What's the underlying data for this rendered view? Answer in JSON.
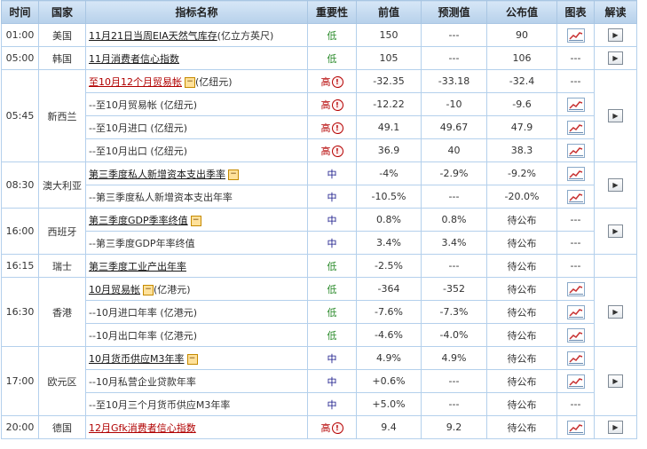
{
  "headers": [
    "时间",
    "国家",
    "指标名称",
    "重要性",
    "前值",
    "预测值",
    "公布值",
    "图表",
    "解读"
  ],
  "rows": [
    {
      "time": "01:00",
      "country": "美国",
      "ind_label": "11月21日当周EIA天然气库存",
      "unit": "(亿立方英尺)",
      "toggle": false,
      "red": false,
      "indicator_link": true,
      "importance": "低",
      "imp": "low",
      "prev": "150",
      "forecast": "---",
      "actual": "90",
      "chart": true,
      "read": true
    },
    {
      "time": "05:00",
      "country": "韩国",
      "ind_label": "11月消费者信心指数",
      "unit": "",
      "toggle": false,
      "red": false,
      "indicator_link": true,
      "importance": "低",
      "imp": "low",
      "prev": "105",
      "forecast": "---",
      "actual": "106",
      "chart": false,
      "read": true
    },
    {
      "time": "05:45",
      "country": "新西兰",
      "ind_label": "至10月12个月贸易帐",
      "unit": "(亿纽元)",
      "toggle": true,
      "red": true,
      "indicator_link": true,
      "importance": "高",
      "imp": "high",
      "prev": "-32.35",
      "forecast": "-33.18",
      "actual": "-32.4",
      "chart": false,
      "read": true
    },
    {
      "time": "",
      "country": "",
      "ind_label": "--至10月贸易帐 (亿纽元)",
      "unit": "",
      "toggle": false,
      "red": false,
      "indicator_link": false,
      "importance": "高",
      "imp": "high",
      "prev": "-12.22",
      "forecast": "-10",
      "actual": "-9.6",
      "chart": true,
      "read": false
    },
    {
      "time": "",
      "country": "",
      "ind_label": "--至10月进口 (亿纽元)",
      "unit": "",
      "toggle": false,
      "red": false,
      "indicator_link": false,
      "importance": "高",
      "imp": "high",
      "prev": "49.1",
      "forecast": "49.67",
      "actual": "47.9",
      "chart": true,
      "read": false
    },
    {
      "time": "",
      "country": "",
      "ind_label": "--至10月出口 (亿纽元)",
      "unit": "",
      "toggle": false,
      "red": false,
      "indicator_link": false,
      "importance": "高",
      "imp": "high",
      "prev": "36.9",
      "forecast": "40",
      "actual": "38.3",
      "chart": true,
      "read": false
    },
    {
      "time": "08:30",
      "country": "澳大利亚",
      "ind_label": "第三季度私人新增资本支出季率",
      "unit": "",
      "toggle": true,
      "red": false,
      "indicator_link": true,
      "importance": "中",
      "imp": "mid",
      "prev": "-4%",
      "forecast": "-2.9%",
      "actual": "-9.2%",
      "chart": true,
      "read": true
    },
    {
      "time": "",
      "country": "",
      "ind_label": "--第三季度私人新增资本支出年率",
      "unit": "",
      "toggle": false,
      "red": false,
      "indicator_link": false,
      "importance": "中",
      "imp": "mid",
      "prev": "-10.5%",
      "forecast": "---",
      "actual": "-20.0%",
      "chart": true,
      "read": false
    },
    {
      "time": "16:00",
      "country": "西班牙",
      "ind_label": "第三季度GDP季率终值",
      "unit": "",
      "toggle": true,
      "red": false,
      "indicator_link": true,
      "importance": "中",
      "imp": "mid",
      "prev": "0.8%",
      "forecast": "0.8%",
      "actual": "待公布",
      "chart": false,
      "read": true
    },
    {
      "time": "",
      "country": "",
      "ind_label": "--第三季度GDP年率终值",
      "unit": "",
      "toggle": false,
      "red": false,
      "indicator_link": false,
      "importance": "中",
      "imp": "mid",
      "prev": "3.4%",
      "forecast": "3.4%",
      "actual": "待公布",
      "chart": false,
      "read": false
    },
    {
      "time": "16:15",
      "country": "瑞士",
      "ind_label": "第三季度工业产出年率",
      "unit": "",
      "toggle": false,
      "red": false,
      "indicator_link": true,
      "importance": "低",
      "imp": "low",
      "prev": "-2.5%",
      "forecast": "---",
      "actual": "待公布",
      "chart": false,
      "read": false
    },
    {
      "time": "16:30",
      "country": "香港",
      "ind_label": "10月贸易帐",
      "unit": "(亿港元)",
      "toggle": true,
      "red": false,
      "indicator_link": true,
      "importance": "低",
      "imp": "low",
      "prev": "-364",
      "forecast": "-352",
      "actual": "待公布",
      "chart": true,
      "read": true
    },
    {
      "time": "",
      "country": "",
      "ind_label": "--10月进口年率 (亿港元)",
      "unit": "",
      "toggle": false,
      "red": false,
      "indicator_link": false,
      "importance": "低",
      "imp": "low",
      "prev": "-7.6%",
      "forecast": "-7.3%",
      "actual": "待公布",
      "chart": true,
      "read": false
    },
    {
      "time": "",
      "country": "",
      "ind_label": "--10月出口年率 (亿港元)",
      "unit": "",
      "toggle": false,
      "red": false,
      "indicator_link": false,
      "importance": "低",
      "imp": "low",
      "prev": "-4.6%",
      "forecast": "-4.0%",
      "actual": "待公布",
      "chart": true,
      "read": false
    },
    {
      "time": "17:00",
      "country": "欧元区",
      "ind_label": "10月货币供应M3年率",
      "unit": "",
      "toggle": true,
      "red": false,
      "indicator_link": true,
      "importance": "中",
      "imp": "mid",
      "prev": "4.9%",
      "forecast": "4.9%",
      "actual": "待公布",
      "chart": true,
      "read": true
    },
    {
      "time": "",
      "country": "",
      "ind_label": "--10月私营企业贷款年率",
      "unit": "",
      "toggle": false,
      "red": false,
      "indicator_link": false,
      "importance": "中",
      "imp": "mid",
      "prev": "+0.6%",
      "forecast": "---",
      "actual": "待公布",
      "chart": true,
      "read": false
    },
    {
      "time": "",
      "country": "",
      "ind_label": "--至10月三个月货币供应M3年率",
      "unit": "",
      "toggle": false,
      "red": false,
      "indicator_link": false,
      "importance": "中",
      "imp": "mid",
      "prev": "+5.0%",
      "forecast": "---",
      "actual": "待公布",
      "chart": false,
      "read": false
    },
    {
      "time": "20:00",
      "country": "德国",
      "ind_label": "12月Gfk消费者信心指数",
      "unit": "",
      "toggle": false,
      "red": true,
      "indicator_link": true,
      "importance": "高",
      "imp": "high",
      "prev": "9.4",
      "forecast": "9.2",
      "actual": "待公布",
      "chart": true,
      "read": true
    }
  ],
  "groups": [
    {
      "start": 0,
      "span": 1
    },
    {
      "start": 1,
      "span": 1
    },
    {
      "start": 2,
      "span": 4
    },
    {
      "start": 6,
      "span": 2
    },
    {
      "start": 8,
      "span": 2
    },
    {
      "start": 10,
      "span": 1
    },
    {
      "start": 11,
      "span": 3
    },
    {
      "start": 14,
      "span": 3
    },
    {
      "start": 17,
      "span": 1
    }
  ],
  "empty_cell": "---",
  "colors": {
    "header_bg": "#c7ddf2",
    "border": "#b4d0ec",
    "low": "#2a8a2a",
    "mid": "#1a1a8a",
    "high": "#b40000"
  },
  "icons": {
    "chart": "line-chart-icon",
    "read": "play-icon",
    "toggle": "minus-icon",
    "alert": "alert-icon"
  }
}
